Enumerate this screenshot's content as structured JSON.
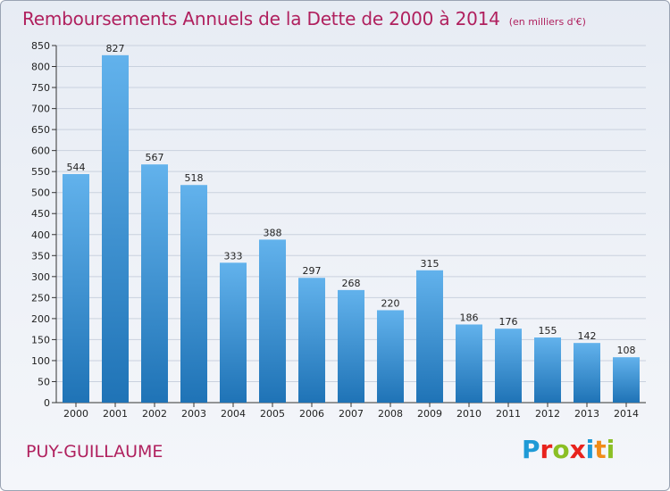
{
  "header": {
    "title": "Remboursements Annuels de la Dette de 2000 à 2014",
    "subtitle": "(en milliers d'€)"
  },
  "footer": {
    "commune": "PUY-GUILLAUME",
    "logo_text": "Proxiti",
    "logo_letter_colors": [
      "#1f9ad6",
      "#e8231d",
      "#8bbf24",
      "#e8231d",
      "#1f9ad6",
      "#f08c1a",
      "#8bbf24"
    ]
  },
  "colors": {
    "bar_top": "#62b2ec",
    "bar_bottom": "#1f73b6",
    "grid": "#c9d1de",
    "axis": "#333333",
    "text": "#222222"
  },
  "chart_data": {
    "type": "bar",
    "title": "Remboursements Annuels de la Dette de 2000 à 2014",
    "subtitle": "(en milliers d'€)",
    "categories": [
      "2000",
      "2001",
      "2002",
      "2003",
      "2004",
      "2005",
      "2006",
      "2007",
      "2008",
      "2009",
      "2010",
      "2011",
      "2012",
      "2013",
      "2014"
    ],
    "values": [
      544,
      827,
      567,
      518,
      333,
      388,
      297,
      268,
      220,
      315,
      186,
      176,
      155,
      142,
      108
    ],
    "ylim": [
      0,
      850
    ],
    "yticks": [
      0,
      50,
      100,
      150,
      200,
      250,
      300,
      350,
      400,
      450,
      500,
      550,
      600,
      650,
      700,
      750,
      800,
      850
    ],
    "xlabel": "",
    "ylabel": "",
    "grid": true,
    "legend": "none"
  }
}
